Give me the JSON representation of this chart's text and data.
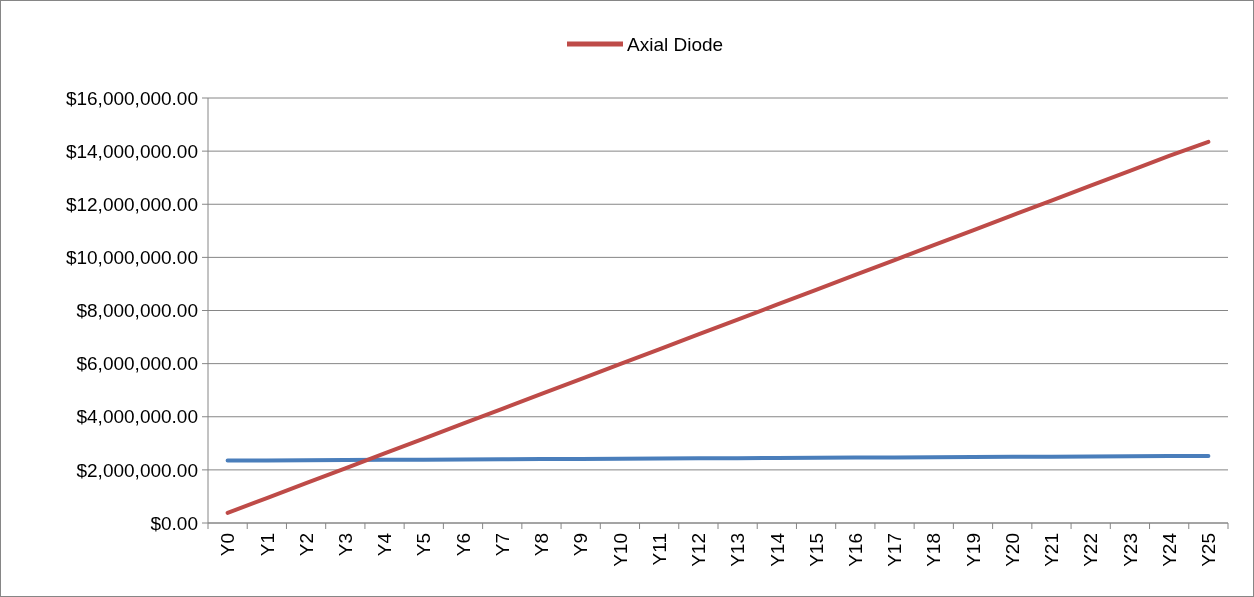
{
  "chart_data": {
    "type": "line",
    "categories": [
      "Y0",
      "Y1",
      "Y2",
      "Y3",
      "Y4",
      "Y5",
      "Y6",
      "Y7",
      "Y8",
      "Y9",
      "Y10",
      "Y11",
      "Y12",
      "Y13",
      "Y14",
      "Y15",
      "Y16",
      "Y17",
      "Y18",
      "Y19",
      "Y20",
      "Y21",
      "Y22",
      "Y23",
      "Y24",
      "Y25"
    ],
    "series": [
      {
        "color": "#4a7ebb",
        "values": [
          2350000,
          2357000,
          2364000,
          2371000,
          2378000,
          2385000,
          2392000,
          2399000,
          2406000,
          2413000,
          2420000,
          2427000,
          2434000,
          2441000,
          2448000,
          2455000,
          2462000,
          2469000,
          2476000,
          2483000,
          2490000,
          2497000,
          2504000,
          2511000,
          2518000,
          2525000
        ]
      },
      {
        "name": "Axial Diode",
        "color": "#be4b48",
        "values": [
          380000,
          940000,
          1500000,
          2060000,
          2620000,
          3180000,
          3740000,
          4300000,
          4860000,
          5420000,
          5980000,
          6540000,
          7100000,
          7660000,
          8220000,
          8780000,
          9340000,
          9900000,
          10460000,
          11020000,
          11580000,
          12140000,
          12700000,
          13260000,
          13820000,
          14350000
        ]
      }
    ],
    "ylim": [
      0,
      16000000
    ],
    "yticks": [
      {
        "value": 0,
        "label": "$0.00"
      },
      {
        "value": 2000000,
        "label": "$2,000,000.00"
      },
      {
        "value": 4000000,
        "label": "$4,000,000.00"
      },
      {
        "value": 6000000,
        "label": "$6,000,000.00"
      },
      {
        "value": 8000000,
        "label": "$8,000,000.00"
      },
      {
        "value": 10000000,
        "label": "$10,000,000.00"
      },
      {
        "value": 12000000,
        "label": "$12,000,000.00"
      },
      {
        "value": 14000000,
        "label": "$14,000,000.00"
      },
      {
        "value": 16000000,
        "label": "$16,000,000.00"
      }
    ],
    "grid": "y",
    "legend": "top",
    "marker": "none",
    "line_style": "solid"
  }
}
